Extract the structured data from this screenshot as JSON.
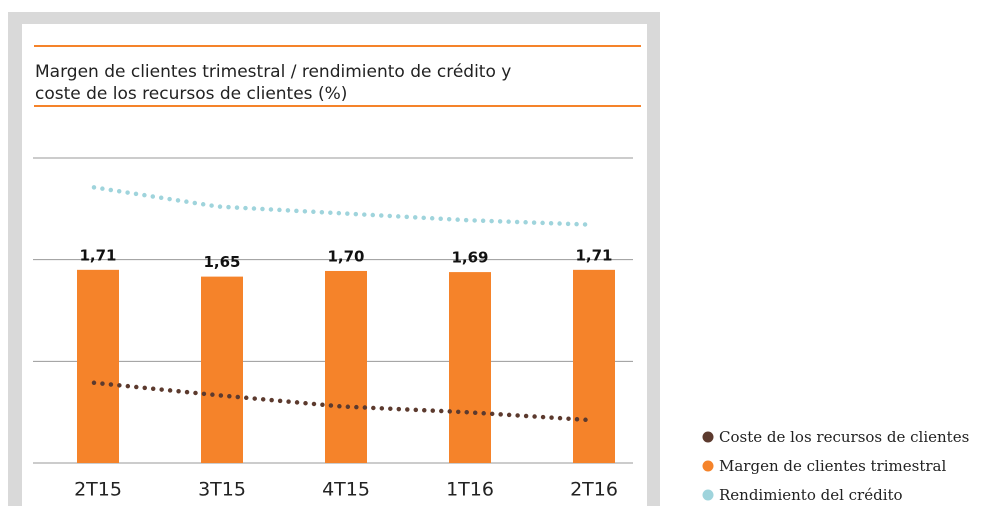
{
  "chart_data": {
    "type": "bar",
    "title": [
      "Margen de clientes trimestral / rendimiento de crédito y",
      "coste de los recursos de clientes (%)"
    ],
    "categories": [
      "2T15",
      "3T15",
      "4T15",
      "1T16",
      "2T16"
    ],
    "ylim": [
      0,
      2.7
    ],
    "yticks": [
      0,
      0.9,
      1.8,
      2.7
    ],
    "grid": true,
    "legend": "right",
    "series": [
      {
        "name": "Coste de los recursos de clientes",
        "type": "line",
        "color": "#5c3a2e",
        "values": [
          0.71,
          0.6,
          0.5,
          0.45,
          0.38
        ]
      },
      {
        "name": "Margen de clientes trimestral",
        "type": "bar",
        "color": "#f5832a",
        "values": [
          1.71,
          1.65,
          1.7,
          1.69,
          1.71
        ],
        "value_labels": [
          "1,71",
          "1,65",
          "1,70",
          "1,69",
          "1,71"
        ]
      },
      {
        "name": "Rendimiento del crédito",
        "type": "line",
        "color": "#9fd4dc",
        "values": [
          2.44,
          2.27,
          2.21,
          2.15,
          2.11
        ]
      }
    ]
  }
}
